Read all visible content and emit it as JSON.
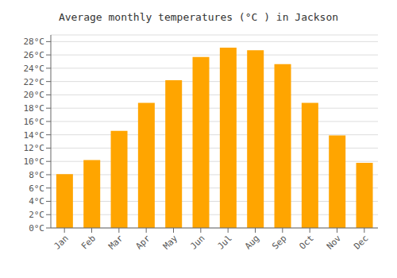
{
  "chart_data": {
    "type": "bar",
    "title": "Average monthly temperatures (°C ) in Jackson",
    "categories": [
      "Jan",
      "Feb",
      "Mar",
      "Apr",
      "May",
      "Jun",
      "Jul",
      "Aug",
      "Sep",
      "Oct",
      "Nov",
      "Dec"
    ],
    "values": [
      8.1,
      10.2,
      14.6,
      18.8,
      22.2,
      25.7,
      27.1,
      26.7,
      24.6,
      18.8,
      13.9,
      9.8
    ],
    "color": "#FFA500",
    "ylim": [
      0,
      29
    ],
    "yticks": [
      {
        "value": 0,
        "label": "0°C"
      },
      {
        "value": 2,
        "label": "2°C"
      },
      {
        "value": 4,
        "label": "4°C"
      },
      {
        "value": 6,
        "label": "6°C"
      },
      {
        "value": 8,
        "label": "8°C"
      },
      {
        "value": 10,
        "label": "10°C"
      },
      {
        "value": 12,
        "label": "12°C"
      },
      {
        "value": 14,
        "label": "14°C"
      },
      {
        "value": 16,
        "label": "16°C"
      },
      {
        "value": 18,
        "label": "18°C"
      },
      {
        "value": 20,
        "label": "20°C"
      },
      {
        "value": 22,
        "label": "22°C"
      },
      {
        "value": 24,
        "label": "24°C"
      },
      {
        "value": 26,
        "label": "26°C"
      },
      {
        "value": 28,
        "label": "28°C"
      }
    ],
    "grid": true
  }
}
